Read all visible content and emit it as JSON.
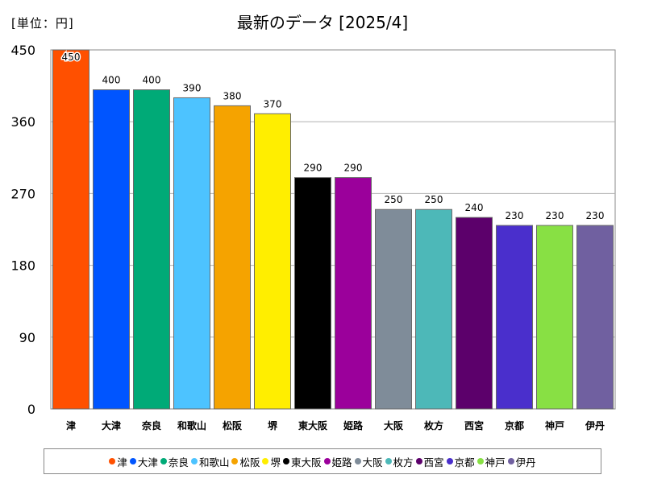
{
  "chart_data": {
    "type": "bar",
    "unit_label": "[単位：円]",
    "title": "最新のデータ [2025/4]",
    "categories": [
      "津",
      "大津",
      "奈良",
      "和歌山",
      "松阪",
      "堺",
      "東大阪",
      "姫路",
      "大阪",
      "枚方",
      "西宮",
      "京都",
      "神戸",
      "伊丹"
    ],
    "values": [
      450,
      400,
      400,
      390,
      380,
      370,
      290,
      290,
      250,
      250,
      240,
      230,
      230,
      230
    ],
    "colors": [
      "#ff5000",
      "#0055ff",
      "#00aa77",
      "#4dc3ff",
      "#f5a300",
      "#ffee00",
      "#000000",
      "#9b009b",
      "#7f8c99",
      "#4db8b8",
      "#5c006b",
      "#4a2fcc",
      "#88e044",
      "#7060a0"
    ],
    "ylim": [
      0,
      450
    ],
    "yticks": [
      0,
      90,
      180,
      270,
      360,
      450
    ],
    "grid": true,
    "legend_position": "bottom"
  }
}
